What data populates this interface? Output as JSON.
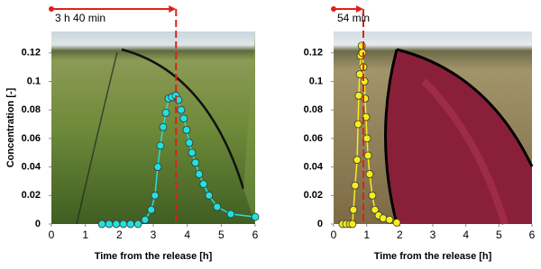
{
  "chart_data": [
    {
      "type": "line",
      "color": "#22e0e0",
      "x": [
        1.49,
        1.7,
        1.91,
        2.12,
        2.33,
        2.55,
        2.76,
        2.94,
        3.05,
        3.13,
        3.21,
        3.29,
        3.37,
        3.45,
        3.55,
        3.66,
        3.74,
        3.82,
        3.9,
        3.98,
        4.06,
        4.14,
        4.24,
        4.35,
        4.48,
        4.64,
        4.88,
        5.28,
        6.0
      ],
      "values": [
        0,
        0,
        0,
        0,
        0,
        0,
        0.003,
        0.01,
        0.02,
        0.04,
        0.055,
        0.068,
        0.078,
        0.088,
        0.089,
        0.09,
        0.087,
        0.08,
        0.074,
        0.066,
        0.057,
        0.05,
        0.043,
        0.035,
        0.028,
        0.02,
        0.012,
        0.007,
        0.005
      ],
      "xlim": [
        0,
        6
      ],
      "xticks": [
        0,
        1,
        2,
        3,
        4,
        5,
        6
      ],
      "ylim": [
        0,
        0.135
      ],
      "yticks": [
        0,
        0.02,
        0.04,
        0.06,
        0.08,
        0.1,
        0.12
      ],
      "y_label": "Concentration [-]",
      "x_label": "Time from the release [h]",
      "annotation": "3 h 40 min",
      "marker_x": 3.67
    },
    {
      "type": "line",
      "color": "#f5ee1a",
      "x": [
        0.27,
        0.38,
        0.49,
        0.57,
        0.6,
        0.65,
        0.71,
        0.74,
        0.76,
        0.79,
        0.82,
        0.85,
        0.87,
        0.9,
        0.93,
        0.95,
        0.98,
        1.01,
        1.04,
        1.09,
        1.17,
        1.25,
        1.36,
        1.5,
        1.69,
        1.91
      ],
      "values": [
        0,
        0,
        0,
        0,
        0.01,
        0.027,
        0.045,
        0.07,
        0.09,
        0.105,
        0.118,
        0.125,
        0.12,
        0.11,
        0.1,
        0.088,
        0.075,
        0.06,
        0.048,
        0.035,
        0.02,
        0.01,
        0.006,
        0.004,
        0.003,
        0.001
      ],
      "xlim": [
        0,
        6
      ],
      "xticks": [
        0,
        1,
        2,
        3,
        4,
        5,
        6
      ],
      "ylim": [
        0,
        0.135
      ],
      "yticks": [
        0,
        0.02,
        0.04,
        0.06,
        0.08,
        0.1,
        0.12
      ],
      "x_label": "Time from the release [h]",
      "annotation": "54 min",
      "marker_x": 0.9
    }
  ]
}
